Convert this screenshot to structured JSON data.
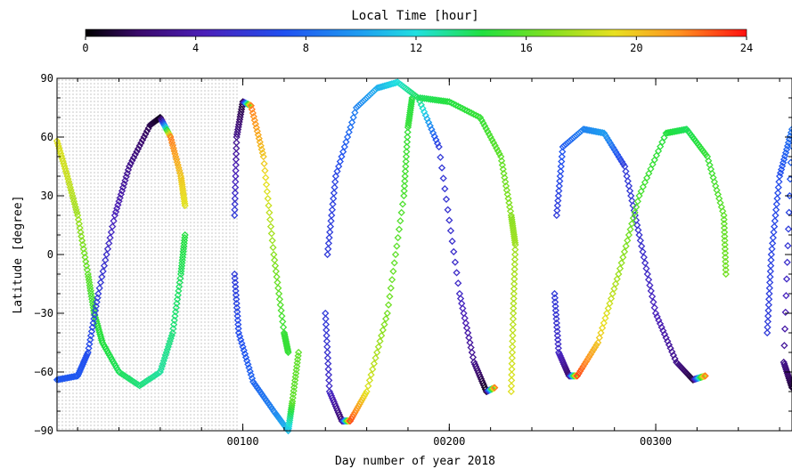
{
  "colorbar": {
    "title": "Local Time [hour]",
    "ticks": [
      "0",
      "4",
      "8",
      "12",
      "16",
      "20",
      "24"
    ],
    "range": [
      0,
      24
    ]
  },
  "chart_data": {
    "type": "scatter",
    "title": "",
    "xlabel": "Day number of year 2018",
    "ylabel": "Latitude [degree]",
    "xlim": [
      10,
      366
    ],
    "ylim": [
      -90,
      90
    ],
    "xticks": [
      {
        "value": 100,
        "label": "00100"
      },
      {
        "value": 200,
        "label": "00200"
      },
      {
        "value": 300,
        "label": "00300"
      }
    ],
    "yticks": [
      -90,
      -60,
      -30,
      0,
      30,
      60,
      90
    ],
    "shaded_region": {
      "x_start": 10,
      "x_end": 98,
      "pattern": "dots"
    },
    "colormap": "rainbow (black-purple-blue-cyan-green-yellow-orange-red)",
    "series": [
      {
        "label_hint": "descending trace from day 10",
        "points": [
          [
            10,
            58,
            19
          ],
          [
            15,
            40,
            18.5
          ],
          [
            20,
            20,
            17.5
          ],
          [
            25,
            -10,
            16
          ],
          [
            28,
            -30,
            15
          ],
          [
            32,
            -45,
            14.5
          ],
          [
            40,
            -60,
            14
          ],
          [
            50,
            -67,
            13.5
          ],
          [
            60,
            -60,
            13
          ],
          [
            66,
            -40,
            13.5
          ],
          [
            70,
            -10,
            14
          ],
          [
            72,
            10,
            14.5
          ]
        ]
      },
      {
        "label_hint": "ascending trace from day 10",
        "points": [
          [
            10,
            -64,
            7.5
          ],
          [
            20,
            -62,
            7.5
          ],
          [
            25,
            -50,
            7
          ],
          [
            30,
            -20,
            6
          ],
          [
            38,
            20,
            4.5
          ],
          [
            45,
            45,
            3
          ],
          [
            55,
            66,
            1.5
          ],
          [
            60,
            70,
            0.5
          ],
          [
            65,
            60,
            22
          ],
          [
            70,
            40,
            20
          ],
          [
            72,
            25,
            19
          ]
        ]
      },
      {
        "label_hint": "arc day 95-122",
        "points": [
          [
            96,
            20,
            6
          ],
          [
            97,
            60,
            3
          ],
          [
            100,
            78,
            1
          ],
          [
            104,
            76,
            22
          ],
          [
            110,
            50,
            20
          ],
          [
            115,
            0,
            17
          ],
          [
            120,
            -40,
            15
          ],
          [
            122,
            -50,
            15
          ]
        ]
      },
      {
        "label_hint": "descending day 96-122",
        "points": [
          [
            96,
            -10,
            6
          ],
          [
            98,
            -40,
            7
          ],
          [
            105,
            -65,
            8
          ],
          [
            115,
            -80,
            9
          ],
          [
            122,
            -90,
            11
          ],
          [
            124,
            -75,
            16
          ],
          [
            127,
            -50,
            16
          ]
        ]
      },
      {
        "label_hint": "ascending day 140-190",
        "points": [
          [
            140,
            -30,
            6
          ],
          [
            142,
            -70,
            5
          ],
          [
            148,
            -85,
            2
          ],
          [
            152,
            -85,
            23
          ],
          [
            160,
            -70,
            19
          ],
          [
            170,
            -30,
            16.5
          ],
          [
            178,
            30,
            15.5
          ],
          [
            180,
            65,
            15
          ],
          [
            182,
            80,
            14.5
          ]
        ]
      },
      {
        "label_hint": "descending day 140-220",
        "points": [
          [
            141,
            0,
            6
          ],
          [
            145,
            40,
            6.5
          ],
          [
            155,
            75,
            9
          ],
          [
            165,
            85,
            10.5
          ],
          [
            175,
            88,
            12
          ],
          [
            185,
            80,
            14
          ],
          [
            195,
            55,
            6
          ],
          [
            205,
            -20,
            5
          ],
          [
            212,
            -55,
            3
          ],
          [
            218,
            -70,
            0.5
          ],
          [
            222,
            -68,
            22
          ]
        ]
      },
      {
        "label_hint": "descending day 185-232",
        "points": [
          [
            186,
            80,
            14
          ],
          [
            200,
            78,
            14.5
          ],
          [
            215,
            70,
            15
          ],
          [
            225,
            50,
            16
          ],
          [
            230,
            20,
            17
          ],
          [
            232,
            5,
            17.5
          ],
          [
            231,
            -30,
            18
          ],
          [
            230,
            -70,
            19
          ]
        ]
      },
      {
        "label_hint": "loop day 250-300",
        "points": [
          [
            252,
            20,
            6
          ],
          [
            255,
            55,
            7.5
          ],
          [
            265,
            64,
            9
          ],
          [
            275,
            62,
            10
          ],
          [
            285,
            45,
            6
          ],
          [
            292,
            10,
            5.5
          ],
          [
            300,
            -30,
            4.5
          ],
          [
            310,
            -55,
            3
          ],
          [
            318,
            -64,
            1
          ],
          [
            324,
            -62,
            22
          ]
        ]
      },
      {
        "label_hint": "loop day 250-335",
        "points": [
          [
            251,
            -20,
            6
          ],
          [
            253,
            -50,
            5
          ],
          [
            258,
            -62,
            2
          ],
          [
            262,
            -62,
            23
          ],
          [
            272,
            -45,
            20
          ],
          [
            282,
            -10,
            17.5
          ],
          [
            292,
            30,
            15.5
          ],
          [
            305,
            62,
            14.5
          ],
          [
            315,
            64,
            14
          ],
          [
            325,
            50,
            15
          ],
          [
            333,
            20,
            16
          ],
          [
            334,
            -10,
            16.5
          ]
        ]
      },
      {
        "label_hint": "day 354-366",
        "points": [
          [
            354,
            -40,
            6
          ],
          [
            356,
            0,
            6.5
          ],
          [
            360,
            40,
            7
          ],
          [
            366,
            64,
            8.5
          ],
          [
            362,
            -55,
            3
          ],
          [
            366,
            -68,
            1
          ]
        ]
      }
    ]
  }
}
